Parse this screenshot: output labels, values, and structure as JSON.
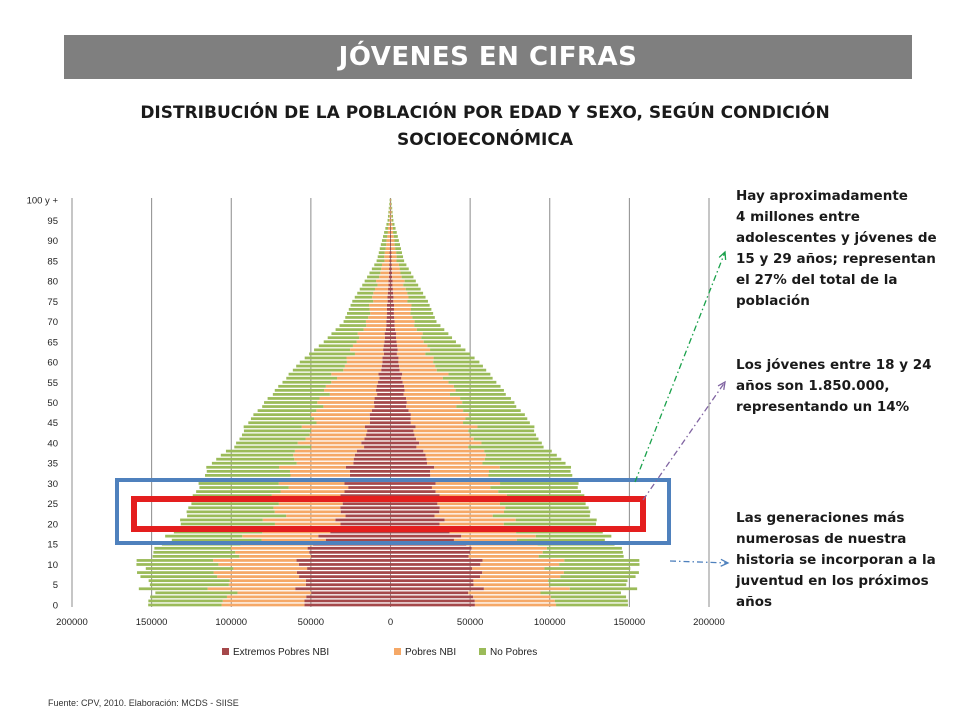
{
  "header": {
    "banner": "JÓVENES EN CIFRAS"
  },
  "title_lines": [
    "DISTRIBUCIÓN DE LA POBLACIÓN POR EDAD Y SEXO, SEGÚN CONDICIÓN",
    "SOCIOECONÓMICA"
  ],
  "chart_data": {
    "type": "bar",
    "orientation": "horizontal",
    "layout": "population-pyramid",
    "title": "DISTRIBUCIÓN DE LA POBLACIÓN POR EDAD Y SEXO, SEGÚN CONDICIÓN SOCIOECONÓMICA",
    "y_tick_labels": [
      "0",
      "5",
      "10",
      "15",
      "20",
      "25",
      "30",
      "35",
      "40",
      "45",
      "50",
      "55",
      "60",
      "65",
      "70",
      "75",
      "80",
      "85",
      "90",
      "95",
      "100 y +"
    ],
    "x_tick_labels": [
      "200000",
      "150000",
      "100000",
      "50000",
      "0",
      "50000",
      "100000",
      "150000",
      "200000"
    ],
    "xlim": [
      -200000,
      200000
    ],
    "grid": "vertical",
    "legend_position": "bottom",
    "series": [
      {
        "name": "Extremos Pobres NBI",
        "color": "#a5484a"
      },
      {
        "name": "Pobres NBI",
        "color": "#f5a867"
      },
      {
        "name": "No Pobres",
        "color": "#9bbb59"
      }
    ],
    "approx_age_group_profile": {
      "ages": [
        0,
        5,
        10,
        15,
        20,
        25,
        30,
        35,
        40,
        45,
        50,
        55,
        60,
        65,
        70,
        75,
        80,
        85,
        90,
        95,
        100
      ],
      "extremos_pobres_nbi": [
        52000,
        55000,
        57000,
        48000,
        32000,
        30000,
        28000,
        25000,
        17000,
        14000,
        10000,
        8000,
        5000,
        4000,
        2500,
        2000,
        1200,
        700,
        400,
        150,
        60
      ],
      "pobres_nbi": [
        50000,
        50000,
        50000,
        45000,
        42000,
        40000,
        40000,
        38000,
        37000,
        36000,
        34000,
        30000,
        22000,
        18000,
        12000,
        10000,
        7000,
        3500,
        2000,
        700,
        200
      ],
      "no_pobres": [
        48000,
        48000,
        52000,
        50000,
        58000,
        55000,
        52000,
        50000,
        42000,
        40000,
        35000,
        30000,
        30000,
        20000,
        15000,
        12000,
        8000,
        4500,
        3000,
        1000,
        300
      ]
    }
  },
  "annotations": [
    {
      "lines": [
        "Hay aproximadamente",
        "4 millones entre",
        "adolescentes y jóvenes  de",
        "15 y 29 años;  representan",
        "el 27% del total de la",
        "población"
      ]
    },
    {
      "lines": [
        "Los jóvenes entre 18 y 24",
        "años son 1.850.000,",
        "representando un 14%"
      ]
    },
    {
      "lines": [
        "Las generaciones más",
        "numerosas de nuestra",
        "historia se incorporan a la",
        "juventud en los próximos",
        "años"
      ]
    }
  ],
  "highlight_colors": {
    "blue_box": "#4f81bd",
    "red_box": "#e41e1e",
    "green_arrow": "#1aa14b",
    "purple_arrow": "#8064a2",
    "blue_arrow": "#4f81bd"
  },
  "source": "Fuente: CPV, 2010. Elaboración: MCDS - SIISE"
}
